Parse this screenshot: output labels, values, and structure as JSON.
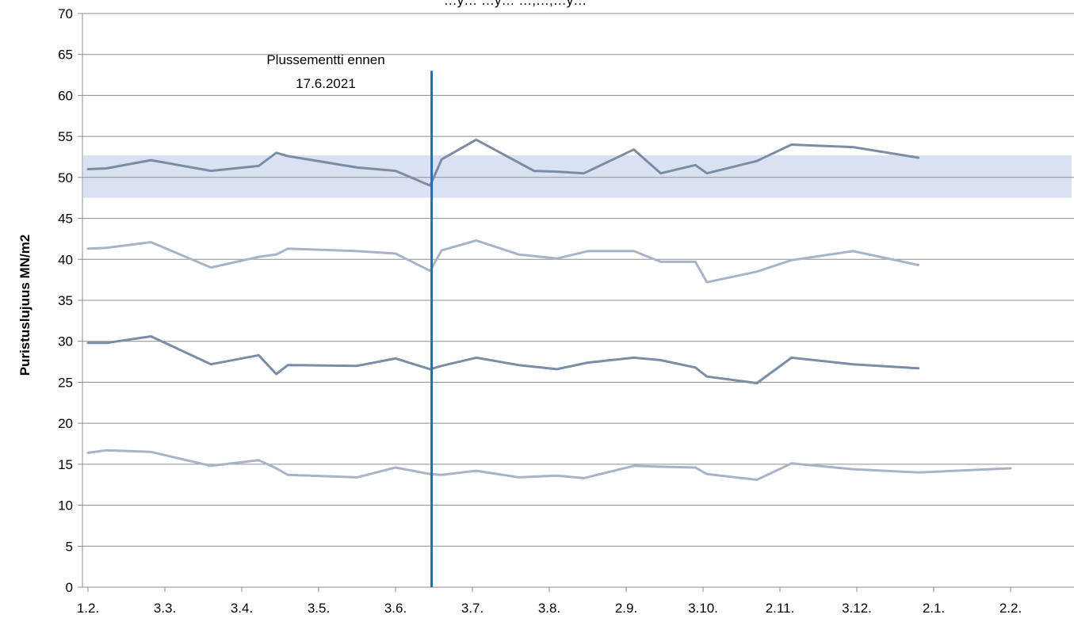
{
  "chart_data": {
    "type": "line",
    "title": "…y… …y… …,…,…y…",
    "ylabel": "Puristuslujuus  MN/m2",
    "xlabel": "",
    "ylim": [
      0,
      70
    ],
    "ytick_step": 5,
    "x_ticks": [
      "1.2.",
      "3.3.",
      "3.4.",
      "3.5.",
      "3.6.",
      "3.7.",
      "3.8.",
      "2.9.",
      "3.10.",
      "2.11.",
      "3.12.",
      "2.1.",
      "2.2."
    ],
    "grid": true,
    "legend": "none",
    "band": {
      "from": 47.5,
      "to": 52.7,
      "color": "#d9e1f2"
    },
    "annotation": {
      "text_lines": [
        "Plussementti ennen",
        "17.6.2021"
      ],
      "x": 4.47,
      "ymax": 63,
      "color": "#1a6fb5"
    },
    "series": [
      {
        "color": "#7c8ca4",
        "x": [
          0,
          0.24,
          0.82,
          1.6,
          2.22,
          2.45,
          2.6,
          3.5,
          4.0,
          4.45,
          4.6,
          5.05,
          5.8,
          6.1,
          6.45,
          7.1,
          7.45,
          7.9,
          8.05,
          8.7,
          9.15,
          9.95,
          10.8
        ],
        "y": [
          51,
          51.1,
          52.1,
          50.8,
          51.4,
          53,
          52.6,
          51.2,
          50.8,
          49,
          52.2,
          54.6,
          50.8,
          50.7,
          50.5,
          53.4,
          50.5,
          51.5,
          50.5,
          52,
          54,
          53.7,
          52.4
        ]
      },
      {
        "color": "#a8b4c6",
        "x": [
          0,
          0.24,
          0.82,
          1.6,
          2.22,
          2.45,
          2.6,
          3.5,
          4.0,
          4.45,
          4.6,
          5.05,
          5.6,
          6.1,
          6.5,
          7.1,
          7.45,
          7.9,
          8.05,
          8.7,
          9.15,
          9.95,
          10.8
        ],
        "y": [
          41.3,
          41.4,
          42.1,
          39,
          40.3,
          40.6,
          41.3,
          41,
          40.7,
          38.6,
          41.1,
          42.3,
          40.6,
          40.1,
          41,
          41,
          39.7,
          39.7,
          37.2,
          38.5,
          39.9,
          41,
          39.3
        ]
      },
      {
        "color": "#7c8ca4",
        "x": [
          0,
          0.24,
          0.82,
          1.6,
          2.22,
          2.45,
          2.6,
          3.5,
          4.0,
          4.45,
          4.6,
          5.05,
          5.6,
          6.1,
          6.5,
          7.1,
          7.45,
          7.9,
          8.05,
          8.7,
          9.15,
          9.95,
          10.8
        ],
        "y": [
          29.8,
          29.8,
          30.6,
          27.2,
          28.3,
          26,
          27.1,
          27,
          27.9,
          26.6,
          27,
          28,
          27.1,
          26.6,
          27.4,
          28,
          27.7,
          26.8,
          25.7,
          24.9,
          28,
          27.2,
          26.7
        ]
      },
      {
        "color": "#a8b4c6",
        "x": [
          0,
          0.24,
          0.82,
          1.6,
          2.22,
          2.45,
          2.6,
          3.5,
          4.0,
          4.45,
          4.6,
          5.05,
          5.6,
          6.1,
          6.45,
          7.1,
          7.45,
          7.9,
          8.05,
          8.7,
          9.15,
          9.95,
          10.8,
          12.0
        ],
        "y": [
          16.4,
          16.7,
          16.5,
          14.8,
          15.5,
          14.5,
          13.7,
          13.4,
          14.6,
          13.8,
          13.7,
          14.2,
          13.4,
          13.6,
          13.3,
          14.8,
          14.7,
          14.6,
          13.8,
          13.1,
          15.1,
          14.4,
          14,
          14.5
        ]
      }
    ]
  }
}
